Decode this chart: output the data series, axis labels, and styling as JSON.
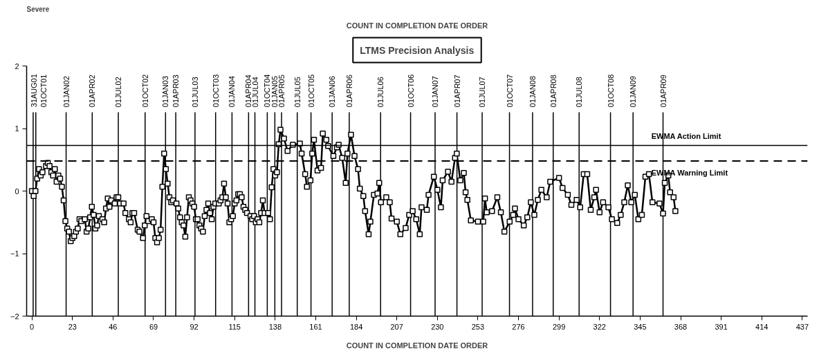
{
  "chart_data": {
    "type": "line",
    "title": "COUNT IN COMPLETION DATE ORDER",
    "subtitle": "LTMS Precision Analysis",
    "xlabel": "COUNT IN COMPLETION DATE ORDER",
    "annotations": [
      "Severe"
    ],
    "x": [
      0,
      1,
      2,
      3,
      4,
      5,
      6,
      8,
      9,
      10,
      11,
      12,
      13,
      14,
      15,
      16,
      17,
      18,
      19,
      20,
      21,
      22,
      23,
      24,
      25,
      26,
      27,
      28,
      30,
      31,
      32,
      33,
      34,
      35,
      36,
      37,
      38,
      40,
      41,
      42,
      43,
      44,
      45,
      47,
      48,
      49,
      50,
      52,
      53,
      55,
      56,
      57,
      58,
      60,
      61,
      63,
      64,
      65,
      66,
      68,
      69,
      70,
      71,
      72,
      73,
      74,
      75,
      76,
      77,
      78,
      79,
      80,
      82,
      83,
      84,
      85,
      86,
      87,
      88,
      89,
      90,
      91,
      92,
      93,
      94,
      95,
      96,
      97,
      98,
      99,
      100,
      101,
      102,
      103,
      104,
      106,
      107,
      108,
      109,
      110,
      111,
      112,
      113,
      114,
      115,
      116,
      117,
      118,
      119,
      120,
      121,
      122,
      124,
      125,
      126,
      127,
      128,
      129,
      130,
      131,
      132,
      134,
      135,
      136,
      137,
      138,
      139,
      140,
      141,
      143,
      145,
      148,
      152,
      153,
      155,
      156,
      158,
      159,
      160,
      162,
      164,
      165,
      167,
      168,
      171,
      173,
      174,
      176,
      178,
      179,
      181,
      183,
      185,
      186,
      188,
      189,
      191,
      192,
      194,
      196,
      197,
      198,
      201,
      203,
      204,
      207,
      209,
      212,
      214,
      216,
      218,
      220,
      221,
      224,
      225,
      228,
      230,
      232,
      233,
      236,
      238,
      240,
      241,
      243,
      245,
      246,
      247,
      249,
      253,
      256,
      257,
      258,
      261,
      264,
      266,
      268,
      271,
      273,
      274,
      276,
      279,
      281,
      283,
      285,
      287,
      289,
      292,
      294,
      299,
      301,
      304,
      306,
      309,
      311,
      313,
      315,
      317,
      319,
      320,
      322,
      324,
      327,
      329,
      332,
      334,
      336,
      338,
      340,
      342,
      344,
      346,
      348,
      350,
      352,
      356,
      358,
      359,
      361,
      362,
      364,
      365
    ],
    "series": [
      {
        "color": "#000000",
        "values": [
          0,
          -0.08,
          0,
          0.2,
          0.35,
          0.25,
          0.3,
          0.4,
          0.45,
          0.4,
          0.3,
          0.25,
          0.35,
          0.15,
          0.25,
          0.2,
          0.07,
          -0.15,
          -0.48,
          -0.6,
          -0.65,
          -0.8,
          -0.75,
          -0.72,
          -0.65,
          -0.6,
          -0.45,
          -0.48,
          -0.45,
          -0.65,
          -0.6,
          -0.42,
          -0.25,
          -0.38,
          -0.6,
          -0.55,
          -0.4,
          -0.45,
          -0.5,
          -0.28,
          -0.12,
          -0.25,
          -0.15,
          -0.2,
          -0.1,
          -0.1,
          -0.2,
          -0.2,
          -0.35,
          -0.45,
          -0.5,
          -0.35,
          -0.35,
          -0.62,
          -0.65,
          -0.75,
          -0.55,
          -0.4,
          -0.48,
          -0.45,
          -0.5,
          -0.75,
          -0.82,
          -0.75,
          -0.62,
          0.07,
          0.6,
          0.35,
          0.12,
          -0.1,
          -0.18,
          -0.15,
          -0.2,
          -0.28,
          -0.42,
          -0.5,
          -0.55,
          -0.73,
          -0.42,
          -0.1,
          -0.15,
          -0.2,
          -0.25,
          -0.45,
          -0.45,
          -0.55,
          -0.6,
          -0.65,
          -0.4,
          -0.3,
          -0.2,
          -0.35,
          -0.45,
          -0.25,
          -0.2,
          -0.2,
          -0.15,
          -0.1,
          0.12,
          -0.1,
          -0.2,
          -0.5,
          -0.45,
          -0.4,
          -0.2,
          -0.15,
          -0.05,
          -0.05,
          -0.1,
          -0.25,
          -0.3,
          -0.35,
          -0.4,
          -0.45,
          -0.4,
          -0.5,
          -0.45,
          -0.5,
          -0.35,
          -0.15,
          -0.35,
          -0.35,
          -0.45,
          0.06,
          0.35,
          0.25,
          0.3,
          0.75,
          0.98,
          0.84,
          0.64,
          0.74,
          0.76,
          0.6,
          0.27,
          0.07,
          0.17,
          0.6,
          0.82,
          0.33,
          0.37,
          0.92,
          0.82,
          0.72,
          0.56,
          0.7,
          0.74,
          0.53,
          0.13,
          0.6,
          0.9,
          0.56,
          0.35,
          0.04,
          -0.08,
          -0.32,
          -0.69,
          -0.49,
          -0.06,
          -0.04,
          0.13,
          -0.18,
          -0.1,
          -0.18,
          -0.44,
          -0.49,
          -0.69,
          -0.59,
          -0.38,
          -0.32,
          -0.45,
          -0.69,
          -0.26,
          -0.3,
          -0.06,
          0.23,
          0.02,
          -0.26,
          0.17,
          0.31,
          0.15,
          0.53,
          0.6,
          0.17,
          0.29,
          -0.02,
          -0.14,
          -0.47,
          -0.49,
          -0.49,
          -0.12,
          -0.34,
          -0.32,
          -0.1,
          -0.34,
          -0.65,
          -0.49,
          -0.38,
          -0.28,
          -0.45,
          -0.55,
          -0.42,
          -0.18,
          -0.38,
          -0.14,
          0.02,
          -0.1,
          0.15,
          0.21,
          0.05,
          -0.06,
          -0.22,
          -0.14,
          -0.26,
          0.27,
          0.27,
          -0.3,
          -0.1,
          0.02,
          -0.34,
          -0.18,
          -0.26,
          -0.45,
          -0.51,
          -0.38,
          -0.18,
          0.09,
          -0.18,
          -0.06,
          -0.45,
          -0.38,
          0.23,
          0.27,
          -0.18,
          -0.2,
          -0.36,
          0.13,
          0.25,
          -0.02,
          -0.1,
          -0.32
        ]
      }
    ],
    "marker": "square",
    "line_style": "solid",
    "grid": false,
    "xlim": [
      -3,
      440
    ],
    "xticks": [
      0,
      23,
      46,
      69,
      92,
      115,
      138,
      161,
      184,
      207,
      230,
      253,
      276,
      299,
      322,
      345,
      368,
      391,
      414,
      437
    ],
    "ylim": [
      -2,
      2
    ],
    "yticks": [
      -2,
      -1,
      0,
      1,
      2
    ],
    "ref_lines": [
      {
        "axis": "y",
        "value": 0.73,
        "label": "EWMA Action Limit",
        "line_style": "solid"
      },
      {
        "axis": "y",
        "value": 0.48,
        "label": "EWMA Warning Limit",
        "line_style": "dashed"
      },
      {
        "axis": "x",
        "value": 0.7,
        "label": "31AUG01"
      },
      {
        "axis": "x",
        "value": 2.2,
        "label": "01OCT01"
      },
      {
        "axis": "x",
        "value": 19.4,
        "label": "01JAN02"
      },
      {
        "axis": "x",
        "value": 34.2,
        "label": "01APR02"
      },
      {
        "axis": "x",
        "value": 49.0,
        "label": "01JUL02"
      },
      {
        "axis": "x",
        "value": 64.2,
        "label": "01OCT02"
      },
      {
        "axis": "x",
        "value": 75.8,
        "label": "01JAN03"
      },
      {
        "axis": "x",
        "value": 81.6,
        "label": "01APR03"
      },
      {
        "axis": "x",
        "value": 92.5,
        "label": "01JUL03"
      },
      {
        "axis": "x",
        "value": 104.2,
        "label": "01OCT03"
      },
      {
        "axis": "x",
        "value": 113.5,
        "label": "01JAN04"
      },
      {
        "axis": "x",
        "value": 122.9,
        "label": "01APR04"
      },
      {
        "axis": "x",
        "value": 126.5,
        "label": "01JUL04"
      },
      {
        "axis": "x",
        "value": 133.5,
        "label": "01OCT04"
      },
      {
        "axis": "x",
        "value": 137.8,
        "label": "01JAN05"
      },
      {
        "axis": "x",
        "value": 141.6,
        "label": "01APR05"
      },
      {
        "axis": "x",
        "value": 150.5,
        "label": "01JUL05"
      },
      {
        "axis": "x",
        "value": 158.3,
        "label": "01OCT05"
      },
      {
        "axis": "x",
        "value": 170.3,
        "label": "01JAN06"
      },
      {
        "axis": "x",
        "value": 180.0,
        "label": "01APR06"
      },
      {
        "axis": "x",
        "value": 197.8,
        "label": "01JUL06"
      },
      {
        "axis": "x",
        "value": 214.8,
        "label": "01OCT06"
      },
      {
        "axis": "x",
        "value": 228.7,
        "label": "01JAN07"
      },
      {
        "axis": "x",
        "value": 241.1,
        "label": "01APR07"
      },
      {
        "axis": "x",
        "value": 255.4,
        "label": "01JUL07"
      },
      {
        "axis": "x",
        "value": 270.9,
        "label": "01OCT07"
      },
      {
        "axis": "x",
        "value": 284.0,
        "label": "01JAN08"
      },
      {
        "axis": "x",
        "value": 295.7,
        "label": "01APR08"
      },
      {
        "axis": "x",
        "value": 310.4,
        "label": "01JUL08"
      },
      {
        "axis": "x",
        "value": 328.2,
        "label": "01OCT08"
      },
      {
        "axis": "x",
        "value": 341.0,
        "label": "01JAN09"
      },
      {
        "axis": "x",
        "value": 358.0,
        "label": "01APR09"
      }
    ]
  }
}
